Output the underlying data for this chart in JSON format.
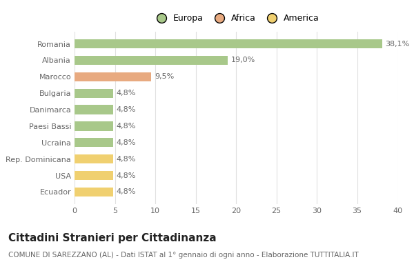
{
  "categories": [
    "Romania",
    "Albania",
    "Marocco",
    "Bulgaria",
    "Danimarca",
    "Paesi Bassi",
    "Ucraina",
    "Rep. Dominicana",
    "USA",
    "Ecuador"
  ],
  "values": [
    38.1,
    19.0,
    9.5,
    4.8,
    4.8,
    4.8,
    4.8,
    4.8,
    4.8,
    4.8
  ],
  "labels": [
    "38,1%",
    "19,0%",
    "9,5%",
    "4,8%",
    "4,8%",
    "4,8%",
    "4,8%",
    "4,8%",
    "4,8%",
    "4,8%"
  ],
  "colors": [
    "#a8c88a",
    "#a8c88a",
    "#e8aa80",
    "#a8c88a",
    "#a8c88a",
    "#a8c88a",
    "#a8c88a",
    "#f0d070",
    "#f0d070",
    "#f0d070"
  ],
  "legend_labels": [
    "Europa",
    "Africa",
    "America"
  ],
  "legend_colors": [
    "#a8c88a",
    "#e8aa80",
    "#f0d070"
  ],
  "title": "Cittadini Stranieri per Cittadinanza",
  "subtitle": "COMUNE DI SAREZZANO (AL) - Dati ISTAT al 1° gennaio di ogni anno - Elaborazione TUTTITALIA.IT",
  "xlim": [
    0,
    40
  ],
  "xticks": [
    0,
    5,
    10,
    15,
    20,
    25,
    30,
    35,
    40
  ],
  "background_color": "#ffffff",
  "bar_height": 0.55,
  "grid_color": "#e0e0e0",
  "text_color": "#666666",
  "label_fontsize": 8,
  "tick_fontsize": 8,
  "title_fontsize": 11,
  "subtitle_fontsize": 7.5
}
